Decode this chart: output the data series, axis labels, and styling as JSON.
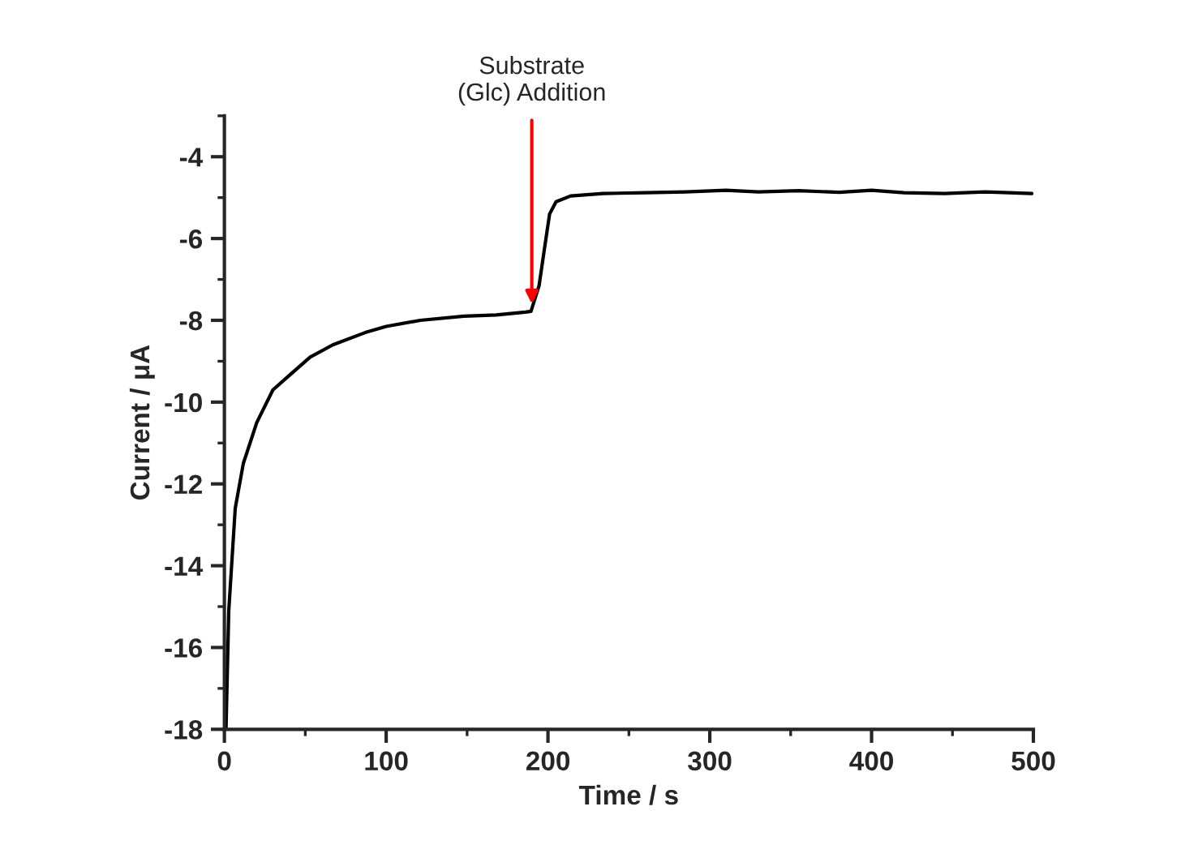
{
  "chart_data": {
    "type": "line",
    "xlabel": "Time / s",
    "ylabel": "Current / μA",
    "x": [
      1,
      2.7,
      6.7,
      11.7,
      20,
      30,
      40,
      53,
      67,
      87,
      100,
      121,
      148,
      168,
      186,
      189.5,
      194.5,
      198,
      201,
      205,
      214,
      234,
      260,
      285,
      310,
      330,
      355,
      380,
      400,
      420,
      445,
      470,
      485,
      499
    ],
    "series": [
      {
        "color": "#000000",
        "values": [
          -18,
          -15.1,
          -12.6,
          -11.5,
          -10.5,
          -9.7,
          -9.35,
          -8.9,
          -8.6,
          -8.3,
          -8.15,
          -8.0,
          -7.9,
          -7.87,
          -7.8,
          -7.78,
          -7.15,
          -6.2,
          -5.4,
          -5.1,
          -4.96,
          -4.9,
          -4.88,
          -4.86,
          -4.82,
          -4.86,
          -4.83,
          -4.87,
          -4.82,
          -4.88,
          -4.9,
          -4.86,
          -4.88,
          -4.9
        ]
      }
    ],
    "xlim": [
      0,
      500
    ],
    "ylim": [
      -18,
      -3
    ],
    "xticks": [
      0,
      100,
      200,
      300,
      400,
      500
    ],
    "yticks": [
      {
        "value": -18,
        "label": "-18"
      },
      {
        "value": -16,
        "label": "-16"
      },
      {
        "value": -14,
        "label": "-14"
      },
      {
        "value": -12,
        "label": "-12"
      },
      {
        "value": -10,
        "label": "-10"
      },
      {
        "value": -8,
        "label": "-8"
      },
      {
        "value": -6,
        "label": "-6"
      },
      {
        "value": -4,
        "label": "-4"
      }
    ],
    "annotations": [
      {
        "text": "Substrate\n(Glc) Addition",
        "x": 190,
        "y": -7.6
      }
    ],
    "grid": false,
    "legend": false,
    "marker": "none",
    "line_style": "solid"
  }
}
